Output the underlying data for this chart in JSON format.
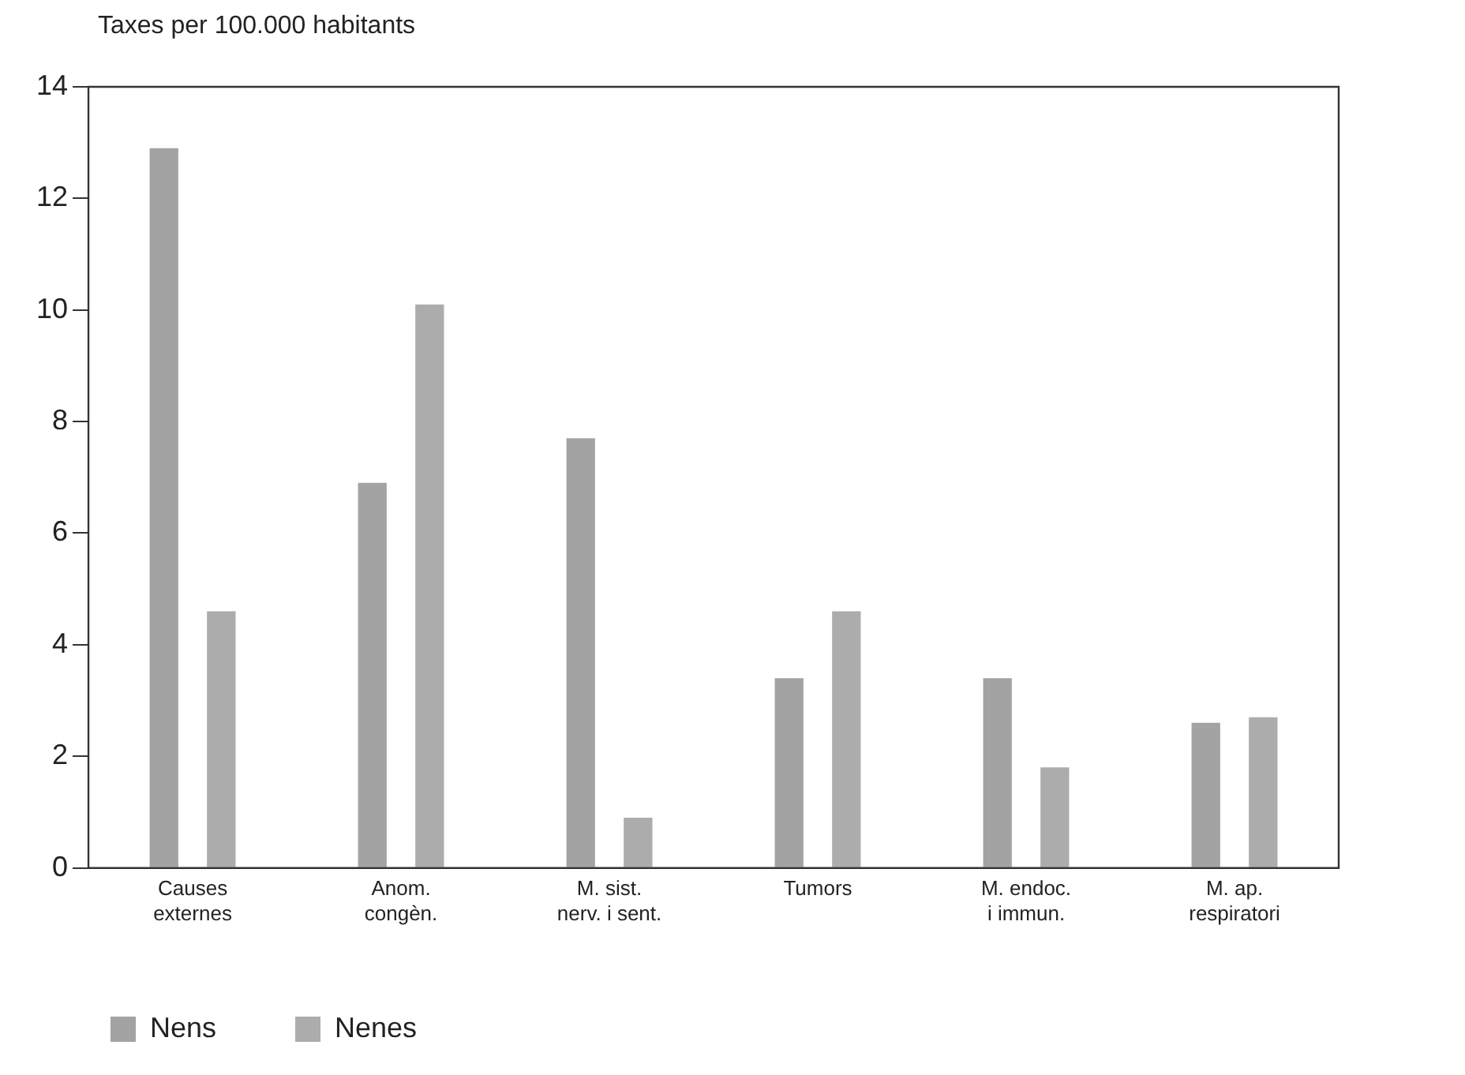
{
  "chart_data": {
    "type": "bar",
    "ylabel": "Taxes per 100.000 habitants",
    "categories": [
      "Causes\nexternes",
      "Anom.\ncongèn.",
      "M. sist.\nnerv. i sent.",
      "Tumors",
      "M. endoc.\ni immun.",
      "M. ap.\nrespiratori"
    ],
    "series": [
      {
        "name": "Nens",
        "color": "#a3a3a3",
        "values": [
          12.9,
          6.9,
          7.7,
          3.4,
          3.4,
          2.6
        ]
      },
      {
        "name": "Nenes",
        "color": "#acacac",
        "values": [
          4.6,
          10.1,
          0.9,
          4.6,
          1.8,
          2.7
        ]
      }
    ],
    "ylim": [
      0,
      14
    ],
    "yticks": [
      0,
      2,
      4,
      6,
      8,
      10,
      12,
      14
    ],
    "grid": false,
    "legend": "bottom left"
  }
}
